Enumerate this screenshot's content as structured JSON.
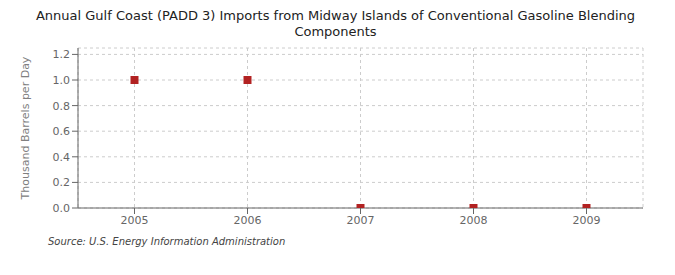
{
  "chart_data": {
    "type": "scatter",
    "title": "Annual Gulf Coast (PADD 3) Imports from Midway Islands of Conventional Gasoline Blending\nComponents",
    "ylabel": "Thousand Barrels per Day",
    "annotations": [
      "Source: U.S. Energy Information Administration"
    ],
    "x": [
      2005,
      2006,
      2007,
      2008,
      2009
    ],
    "values": [
      1.0,
      1.0,
      0.0,
      0.0,
      0.0
    ],
    "xlim": [
      2004.5,
      2009.5
    ],
    "ylim": [
      0.0,
      1.25
    ],
    "xticks": [
      2005,
      2006,
      2007,
      2008,
      2009
    ],
    "yticks": [
      {
        "value": 0,
        "label": "0.0"
      },
      0.2,
      0.4,
      0.6,
      0.8,
      {
        "value": 1,
        "label": "1.0"
      },
      1.2
    ],
    "color": "#b22222",
    "marker": "square",
    "grid": true
  }
}
